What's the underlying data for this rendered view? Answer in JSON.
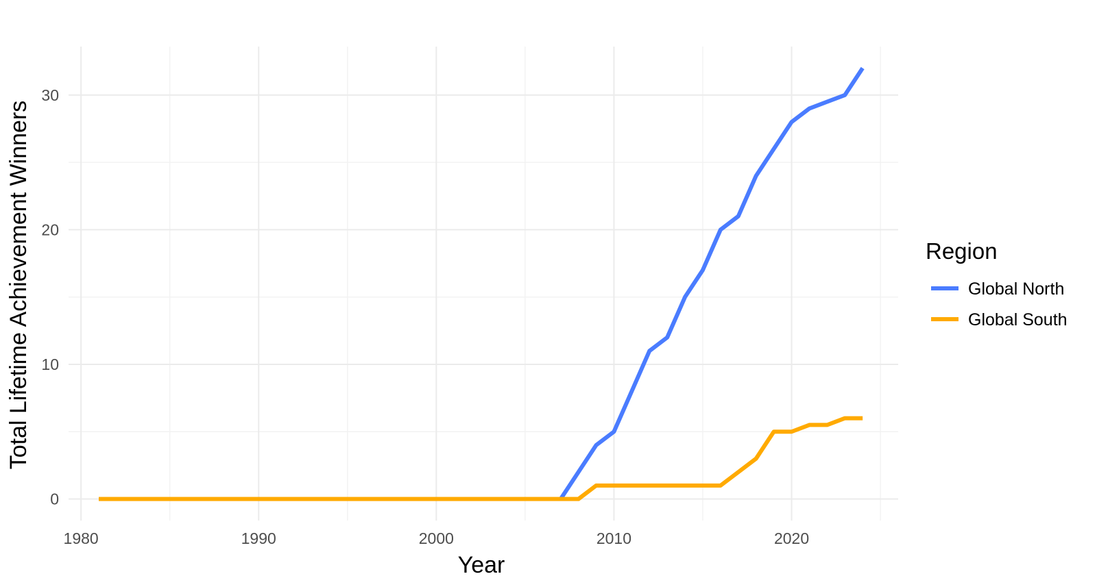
{
  "chart_data": {
    "type": "line",
    "title": "",
    "xlabel": "Year",
    "ylabel": "Total Lifetime Achievement Winners",
    "xlim": [
      1979.3,
      2026.0
    ],
    "ylim": [
      -1.6,
      33.6
    ],
    "x_ticks": [
      1980,
      1990,
      2000,
      2010,
      2020
    ],
    "y_ticks": [
      0,
      10,
      20,
      30
    ],
    "grid": true,
    "legend": {
      "title": "Region",
      "placement": "right"
    },
    "series": [
      {
        "name": "Global North",
        "color": "#4a7cff",
        "x": [
          1981,
          2007,
          2008,
          2009,
          2010,
          2011,
          2012,
          2013,
          2014,
          2015,
          2016,
          2017,
          2018,
          2019,
          2020,
          2021,
          2022,
          2023,
          2024
        ],
        "y": [
          0,
          0,
          2,
          4,
          5,
          8,
          11,
          12,
          15,
          17,
          20,
          21,
          24,
          26,
          28,
          29,
          29.5,
          30,
          32
        ]
      },
      {
        "name": "Global South",
        "color": "#ffaa00",
        "x": [
          1981,
          2008,
          2009,
          2010,
          2015,
          2016,
          2017,
          2018,
          2019,
          2020,
          2021,
          2022,
          2023,
          2024
        ],
        "y": [
          0,
          0,
          1,
          1,
          1,
          1,
          2,
          3,
          5,
          5,
          5.5,
          5.5,
          6,
          6
        ]
      }
    ]
  }
}
